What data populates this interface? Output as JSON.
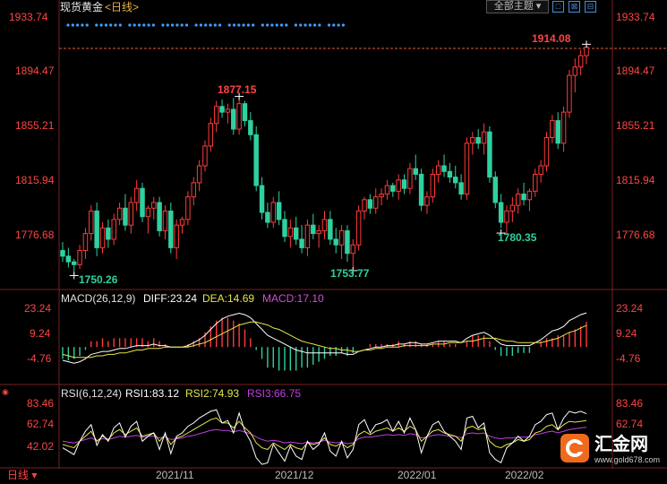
{
  "header": {
    "instrument": "现货黄金",
    "period": "<日线>",
    "theme_button": "全部主题",
    "tools": [
      "□",
      "⊠",
      "⊟"
    ]
  },
  "price_axis": {
    "ticks": [
      "1933.74",
      "1894.47",
      "1855.21",
      "1815.94",
      "1776.68"
    ]
  },
  "macd_axis": {
    "ticks": [
      "23.24",
      "9.24",
      "-4.76"
    ]
  },
  "rsi_axis": {
    "ticks": [
      "83.46",
      "62.74",
      "42.02"
    ]
  },
  "macd_header": {
    "name": "MACD(26,12,9)",
    "diff": "DIFF:23.24",
    "dea": "DEA:14.69",
    "macd": "MACD:17.10"
  },
  "rsi_header": {
    "name": "RSI(6,12,24)",
    "rsi1": "RSI1:83.12",
    "rsi2": "RSI2:74.93",
    "rsi3": "RSI3:66.75"
  },
  "annotations": {
    "high1": "1877.15",
    "low1": "1750.26",
    "low2": "1753.77",
    "low3": "1780.35",
    "high2": "1914.08"
  },
  "x_labels": [
    "2021/11",
    "2021/12",
    "2022/01",
    "2022/02"
  ],
  "footer": {
    "period_tab": "日线",
    "watermark_text": "汇金网",
    "watermark_url": "www.gold678.com"
  },
  "colors": {
    "up": "#ff3b3b",
    "down": "#2fd1a0",
    "diff": "#ffffff",
    "dea": "#e6e64a",
    "macd_label": "#d24fd2",
    "rsi3": "#c040e0"
  },
  "chart_data": [
    {
      "type": "candlestick",
      "title": "现货黄金",
      "ylim": [
        1755,
        1934
      ],
      "high_markers": [
        1877.15,
        1914.08
      ],
      "low_markers": [
        1750.26,
        1753.77,
        1780.35
      ],
      "ohlc": [
        [
          1768,
          1774,
          1760,
          1764
        ],
        [
          1764,
          1770,
          1756,
          1760
        ],
        [
          1760,
          1762,
          1750,
          1758
        ],
        [
          1758,
          1772,
          1755,
          1768
        ],
        [
          1768,
          1784,
          1762,
          1780
        ],
        [
          1780,
          1800,
          1775,
          1796
        ],
        [
          1796,
          1802,
          1764,
          1770
        ],
        [
          1770,
          1788,
          1766,
          1784
        ],
        [
          1784,
          1790,
          1770,
          1776
        ],
        [
          1776,
          1794,
          1772,
          1790
        ],
        [
          1790,
          1802,
          1786,
          1798
        ],
        [
          1798,
          1808,
          1782,
          1786
        ],
        [
          1786,
          1806,
          1780,
          1802
        ],
        [
          1802,
          1818,
          1796,
          1812
        ],
        [
          1812,
          1816,
          1788,
          1792
        ],
        [
          1792,
          1800,
          1780,
          1798
        ],
        [
          1798,
          1806,
          1790,
          1802
        ],
        [
          1802,
          1806,
          1778,
          1782
        ],
        [
          1782,
          1800,
          1776,
          1796
        ],
        [
          1796,
          1802,
          1766,
          1770
        ],
        [
          1770,
          1790,
          1762,
          1786
        ],
        [
          1786,
          1792,
          1780,
          1790
        ],
        [
          1790,
          1810,
          1786,
          1806
        ],
        [
          1806,
          1820,
          1800,
          1816
        ],
        [
          1816,
          1832,
          1810,
          1828
        ],
        [
          1828,
          1846,
          1824,
          1842
        ],
        [
          1842,
          1862,
          1838,
          1858
        ],
        [
          1858,
          1874,
          1852,
          1870
        ],
        [
          1870,
          1875,
          1862,
          1866
        ],
        [
          1866,
          1872,
          1858,
          1868
        ],
        [
          1868,
          1876,
          1850,
          1854
        ],
        [
          1854,
          1877,
          1850,
          1872
        ],
        [
          1872,
          1874,
          1856,
          1860
        ],
        [
          1860,
          1866,
          1846,
          1850
        ],
        [
          1850,
          1856,
          1810,
          1814
        ],
        [
          1814,
          1820,
          1790,
          1795
        ],
        [
          1795,
          1802,
          1784,
          1788
        ],
        [
          1788,
          1806,
          1784,
          1802
        ],
        [
          1802,
          1810,
          1786,
          1790
        ],
        [
          1790,
          1796,
          1774,
          1778
        ],
        [
          1778,
          1790,
          1770,
          1784
        ],
        [
          1784,
          1792,
          1772,
          1776
        ],
        [
          1776,
          1786,
          1766,
          1770
        ],
        [
          1770,
          1790,
          1764,
          1786
        ],
        [
          1786,
          1794,
          1776,
          1780
        ],
        [
          1780,
          1786,
          1770,
          1782
        ],
        [
          1782,
          1796,
          1776,
          1790
        ],
        [
          1790,
          1796,
          1772,
          1776
        ],
        [
          1776,
          1784,
          1766,
          1772
        ],
        [
          1772,
          1786,
          1762,
          1782
        ],
        [
          1782,
          1786,
          1760,
          1766
        ],
        [
          1766,
          1776,
          1754,
          1772
        ],
        [
          1772,
          1800,
          1768,
          1796
        ],
        [
          1796,
          1806,
          1790,
          1804
        ],
        [
          1804,
          1808,
          1794,
          1798
        ],
        [
          1798,
          1812,
          1794,
          1806
        ],
        [
          1806,
          1812,
          1800,
          1808
        ],
        [
          1808,
          1818,
          1804,
          1814
        ],
        [
          1814,
          1816,
          1806,
          1810
        ],
        [
          1810,
          1822,
          1804,
          1818
        ],
        [
          1818,
          1822,
          1808,
          1812
        ],
        [
          1812,
          1830,
          1808,
          1826
        ],
        [
          1826,
          1836,
          1818,
          1822
        ],
        [
          1822,
          1826,
          1796,
          1800
        ],
        [
          1800,
          1810,
          1794,
          1806
        ],
        [
          1806,
          1826,
          1802,
          1822
        ],
        [
          1822,
          1832,
          1816,
          1828
        ],
        [
          1828,
          1836,
          1820,
          1824
        ],
        [
          1824,
          1830,
          1816,
          1820
        ],
        [
          1820,
          1828,
          1812,
          1816
        ],
        [
          1816,
          1822,
          1804,
          1808
        ],
        [
          1808,
          1848,
          1804,
          1844
        ],
        [
          1844,
          1852,
          1836,
          1848
        ],
        [
          1848,
          1854,
          1840,
          1844
        ],
        [
          1844,
          1858,
          1836,
          1852
        ],
        [
          1852,
          1856,
          1816,
          1820
        ],
        [
          1820,
          1824,
          1798,
          1802
        ],
        [
          1802,
          1808,
          1784,
          1788
        ],
        [
          1788,
          1800,
          1780,
          1796
        ],
        [
          1796,
          1806,
          1788,
          1800
        ],
        [
          1800,
          1812,
          1794,
          1808
        ],
        [
          1808,
          1816,
          1800,
          1804
        ],
        [
          1804,
          1812,
          1796,
          1810
        ],
        [
          1810,
          1826,
          1806,
          1822
        ],
        [
          1822,
          1832,
          1816,
          1828
        ],
        [
          1828,
          1852,
          1824,
          1848
        ],
        [
          1848,
          1864,
          1844,
          1860
        ],
        [
          1860,
          1866,
          1840,
          1844
        ],
        [
          1844,
          1870,
          1838,
          1866
        ],
        [
          1866,
          1896,
          1862,
          1892
        ],
        [
          1892,
          1904,
          1880,
          1898
        ],
        [
          1898,
          1910,
          1892,
          1906
        ],
        [
          1906,
          1914.08,
          1900,
          1912
        ]
      ]
    },
    {
      "type": "line",
      "title": "MACD(26,12,9)",
      "ylim": [
        -20,
        30
      ],
      "series": [
        {
          "name": "DIFF",
          "values": [
            -9,
            -10,
            -11,
            -10,
            -8,
            -5,
            -4,
            -3,
            -3,
            -2,
            -1,
            -1,
            0,
            1,
            1,
            1,
            2,
            1,
            1,
            0,
            0,
            0,
            1,
            3,
            5,
            8,
            12,
            16,
            19,
            21,
            22,
            23,
            22,
            20,
            16,
            12,
            8,
            6,
            4,
            2,
            0,
            -2,
            -3,
            -4,
            -4,
            -4,
            -4,
            -4,
            -4,
            -4,
            -5,
            -5,
            -3,
            -2,
            -1,
            0,
            0,
            1,
            1,
            2,
            2,
            3,
            3,
            2,
            2,
            3,
            4,
            4,
            4,
            4,
            3,
            6,
            8,
            9,
            10,
            8,
            5,
            2,
            1,
            1,
            1,
            1,
            1,
            3,
            5,
            8,
            11,
            12,
            14,
            18,
            20,
            22,
            23.24
          ]
        },
        {
          "name": "DEA",
          "values": [
            -5,
            -6,
            -7,
            -7,
            -7,
            -7,
            -6,
            -6,
            -5,
            -5,
            -4,
            -4,
            -3,
            -2,
            -2,
            -1,
            -1,
            -1,
            0,
            0,
            0,
            0,
            0,
            1,
            2,
            3,
            5,
            7,
            9,
            11,
            13,
            15,
            16,
            17,
            17,
            16,
            15,
            13,
            12,
            10,
            8,
            6,
            4,
            3,
            2,
            1,
            0,
            -1,
            -1,
            -2,
            -2,
            -3,
            -3,
            -2,
            -2,
            -1,
            -1,
            0,
            0,
            0,
            1,
            1,
            1,
            1,
            1,
            2,
            2,
            2,
            3,
            3,
            3,
            4,
            4,
            5,
            6,
            6,
            6,
            5,
            4,
            4,
            3,
            3,
            3,
            3,
            3,
            4,
            5,
            6,
            8,
            10,
            11,
            13,
            14.69
          ]
        },
        {
          "name": "MACD",
          "values": [
            -8,
            -9,
            -8,
            -6,
            -2,
            4,
            4,
            6,
            4,
            6,
            6,
            6,
            6,
            6,
            6,
            4,
            6,
            4,
            2,
            0,
            0,
            0,
            2,
            4,
            6,
            10,
            14,
            18,
            20,
            20,
            18,
            16,
            12,
            6,
            -2,
            -8,
            -14,
            -14,
            -16,
            -16,
            -16,
            -16,
            -14,
            -14,
            -12,
            -10,
            -8,
            -6,
            -6,
            -4,
            -6,
            -4,
            0,
            0,
            2,
            2,
            2,
            2,
            2,
            4,
            2,
            4,
            4,
            2,
            2,
            2,
            4,
            4,
            2,
            2,
            0,
            4,
            8,
            8,
            8,
            4,
            -2,
            -6,
            -6,
            -6,
            -4,
            -4,
            -4,
            0,
            4,
            6,
            6,
            8,
            8,
            10,
            12,
            14,
            17.1
          ]
        }
      ]
    },
    {
      "type": "line",
      "title": "RSI(6,12,24)",
      "ylim": [
        20,
        100
      ],
      "series": [
        {
          "name": "RSI1",
          "values": [
            42,
            38,
            34,
            50,
            62,
            70,
            45,
            58,
            50,
            66,
            72,
            55,
            68,
            74,
            50,
            56,
            60,
            40,
            60,
            35,
            56,
            60,
            68,
            72,
            78,
            82,
            86,
            88,
            72,
            75,
            60,
            84,
            62,
            50,
            30,
            22,
            24,
            46,
            36,
            26,
            44,
            32,
            28,
            50,
            40,
            46,
            60,
            38,
            32,
            50,
            30,
            40,
            70,
            76,
            60,
            70,
            72,
            76,
            62,
            74,
            60,
            78,
            64,
            36,
            56,
            70,
            74,
            62,
            56,
            50,
            40,
            78,
            80,
            66,
            72,
            36,
            28,
            24,
            42,
            48,
            56,
            50,
            56,
            70,
            74,
            82,
            84,
            64,
            78,
            86,
            84,
            86,
            83.12
          ]
        },
        {
          "name": "RSI2",
          "values": [
            46,
            44,
            42,
            50,
            56,
            62,
            50,
            56,
            52,
            60,
            64,
            58,
            62,
            66,
            56,
            58,
            60,
            50,
            58,
            46,
            54,
            56,
            60,
            64,
            68,
            72,
            76,
            78,
            72,
            72,
            66,
            74,
            66,
            60,
            48,
            42,
            40,
            48,
            44,
            40,
            46,
            42,
            40,
            48,
            46,
            48,
            54,
            46,
            44,
            48,
            42,
            46,
            58,
            62,
            58,
            62,
            64,
            66,
            62,
            66,
            62,
            68,
            64,
            50,
            56,
            62,
            64,
            60,
            58,
            56,
            50,
            66,
            68,
            64,
            66,
            50,
            44,
            42,
            46,
            48,
            52,
            50,
            52,
            60,
            62,
            68,
            70,
            64,
            70,
            74,
            73,
            74,
            74.93
          ]
        },
        {
          "name": "RSI3",
          "values": [
            50,
            49,
            48,
            50,
            52,
            54,
            51,
            53,
            52,
            54,
            56,
            55,
            56,
            57,
            55,
            56,
            56,
            54,
            55,
            52,
            53,
            54,
            56,
            57,
            59,
            61,
            63,
            64,
            63,
            63,
            61,
            63,
            61,
            59,
            55,
            52,
            50,
            51,
            50,
            48,
            49,
            48,
            47,
            49,
            48,
            49,
            51,
            49,
            48,
            49,
            47,
            48,
            53,
            55,
            55,
            56,
            57,
            58,
            57,
            58,
            57,
            59,
            58,
            54,
            55,
            57,
            58,
            57,
            56,
            56,
            54,
            59,
            60,
            59,
            60,
            56,
            54,
            53,
            54,
            54,
            55,
            55,
            55,
            58,
            59,
            61,
            62,
            60,
            62,
            64,
            65,
            66,
            66.75
          ]
        }
      ]
    }
  ]
}
